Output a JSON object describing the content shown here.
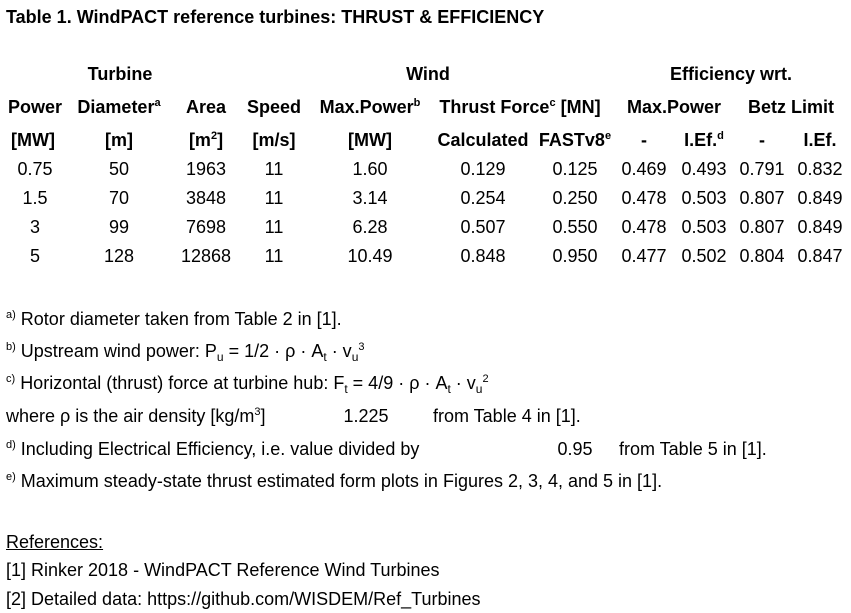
{
  "title": "Table 1. WindPACT reference turbines: THRUST & EFFICIENCY",
  "header": {
    "group_turbine": "Turbine",
    "group_wind": "Wind",
    "group_efficiency": "Efficiency wrt.",
    "power": "Power",
    "diameter": "Diameter",
    "diameter_sup": "a",
    "area": "Area",
    "speed": "Speed",
    "max_power": "Max.Power",
    "max_power_sup": "b",
    "thrust_force": "Thrust Force",
    "thrust_force_sup": "c",
    "thrust_unit": "[MN]",
    "eff_max_power": "Max.Power",
    "betz_limit": "Betz Limit",
    "unit_power": "[MW]",
    "unit_diameter": "[m]",
    "unit_area_open": "[m",
    "unit_area_sup": "2",
    "unit_area_close": "]",
    "unit_speed": "[m/s]",
    "unit_max_power": "[MW]",
    "calculated": "Calculated",
    "fastv8": "FASTv8",
    "fastv8_sup": "e",
    "dash1": "-",
    "ief1": "I.Ef.",
    "ief1_sup": "d",
    "dash2": "-",
    "ief2": "I.Ef."
  },
  "rows": [
    [
      "0.75",
      "50",
      "1963",
      "11",
      "1.60",
      "0.129",
      "0.125",
      "0.469",
      "0.493",
      "0.791",
      "0.832"
    ],
    [
      "1.5",
      "70",
      "3848",
      "11",
      "3.14",
      "0.254",
      "0.250",
      "0.478",
      "0.503",
      "0.807",
      "0.849"
    ],
    [
      "3",
      "99",
      "7698",
      "11",
      "6.28",
      "0.507",
      "0.550",
      "0.478",
      "0.503",
      "0.807",
      "0.849"
    ],
    [
      "5",
      "128",
      "12868",
      "11",
      "10.49",
      "0.848",
      "0.950",
      "0.477",
      "0.502",
      "0.804",
      "0.847"
    ]
  ],
  "notes": {
    "a_mark": "a)",
    "a_text": "Rotor diameter taken from Table 2 in [1].",
    "b_mark": "b)",
    "b_text": "Upstream wind power: P",
    "b_sub_u": "u",
    "b_mid": " = 1/2 · ρ · A",
    "b_sub_t": "t",
    "b_end": " · v",
    "b_sub_u2": "u",
    "b_sup": "3",
    "c_mark": "c)",
    "c_text": "Horizontal (thrust) force at turbine hub: F",
    "c_sub_t": "t",
    "c_mid": " = 4/9 · ρ · A",
    "c_sub_t2": "t",
    "c_end": " · v",
    "c_sub_u": "u",
    "c_sup": "2",
    "rho_text": "where ρ is the air density [kg/m",
    "rho_sup": "3",
    "rho_close": "]",
    "rho_value": "1.225",
    "rho_source": "from Table 4 in [1].",
    "d_mark": "d)",
    "d_text": "Including Electrical Efficiency, i.e. value divided by",
    "d_value": "0.95",
    "d_source": "from Table 5 in [1].",
    "e_mark": "e)",
    "e_text": "Maximum steady-state thrust estimated form plots in Figures 2, 3, 4, and 5 in [1]."
  },
  "references": {
    "heading": "References:",
    "items": [
      "[1] Rinker 2018 - WindPACT Reference Wind Turbines",
      "[2] Detailed data: https://github.com/WISDEM/Ref_Turbines"
    ]
  }
}
